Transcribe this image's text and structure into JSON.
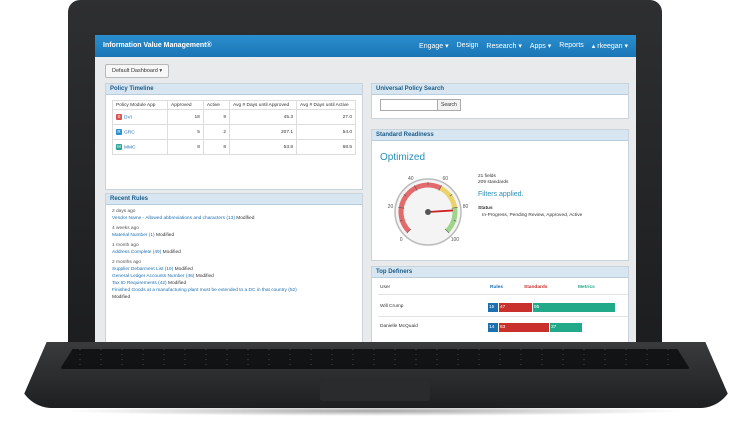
{
  "nav": {
    "brand": "Information Value Management®",
    "menu": [
      "Engage ▾",
      "Design",
      "Research ▾",
      "Apps ▾",
      "Reports",
      "▴ rkeegan ▾"
    ]
  },
  "dashboard_select": "Default Dashboard  ▾",
  "policy_timeline": {
    "title": "Policy Timeline",
    "headers": [
      "Policy Module App",
      "Approved",
      "Active",
      "Avg # Days until Approved",
      "Avg # Days until Active"
    ],
    "rows": [
      {
        "icon_letter": "S",
        "icon_color": "#d9534f",
        "app": "DVI",
        "approved": "18",
        "active": "9",
        "days_approved": "45.3",
        "days_active": "27.0"
      },
      {
        "icon_letter": "R",
        "icon_color": "#2a8fcf",
        "app": "GRC",
        "approved": "5",
        "active": "2",
        "days_approved": "207.1",
        "days_active": "54.0"
      },
      {
        "icon_letter": "M",
        "icon_color": "#26a69a",
        "app": "MMC",
        "approved": "8",
        "active": "8",
        "days_approved": "53.8",
        "days_active": "68.5"
      }
    ]
  },
  "recent_rules": {
    "title": "Recent Rules",
    "groups": [
      {
        "when": "2 days ago",
        "items": [
          {
            "link": "Vendor Name - Allowed abbreviations and characters (13)",
            "action": " Modified"
          }
        ]
      },
      {
        "when": "4 weeks ago",
        "items": [
          {
            "link": "Material Number (1)",
            "action": " Modified"
          }
        ]
      },
      {
        "when": "1 month ago",
        "items": [
          {
            "link": "Address Complete (49)",
            "action": " Modified"
          }
        ]
      },
      {
        "when": "2 months ago",
        "items": [
          {
            "link": "Supplier Debarment List (19)",
            "action": " Modified"
          },
          {
            "link": "General Ledger Accounts Number (46)",
            "action": " Modified"
          },
          {
            "link": "Tax ID Requirements (42)",
            "action": " Modified"
          },
          {
            "link": "Finished Goods at a manufacturing plant must be extended to a DC in that country (52)",
            "action": ""
          }
        ]
      },
      {
        "when": "",
        "items": [
          {
            "link": "",
            "action": "Modified"
          }
        ]
      }
    ]
  },
  "universal_search": {
    "title": "Universal Policy Search",
    "placeholder": "",
    "button": "Search"
  },
  "standard_readiness": {
    "title": "Standard Readiness",
    "status_word": "Optimized",
    "fields": "21 fields",
    "standards": "209 standards",
    "filters": "Filters applied.",
    "status_label": "Status",
    "status_value": "In-Progress, Pending Review, Approved, Active",
    "gauge": {
      "min": 0,
      "max": 100,
      "value": 82,
      "ticks": [
        "0",
        "20",
        "40",
        "60",
        "80",
        "100"
      ]
    }
  },
  "top_definers": {
    "title": "Top Definers",
    "headers": {
      "user": "User",
      "rules": "Rules",
      "standards": "Standards",
      "metrics": "Metrics"
    },
    "rows": [
      {
        "user": "Will Crump",
        "rules": "15",
        "standards": "47",
        "metrics": "95"
      },
      {
        "user": "Danielle McQuaid",
        "rules": "14",
        "standards": "63",
        "metrics": "37"
      }
    ],
    "colors": {
      "rules": "#1d6fb0",
      "standards": "#c9302c",
      "metrics": "#21a98a"
    }
  }
}
